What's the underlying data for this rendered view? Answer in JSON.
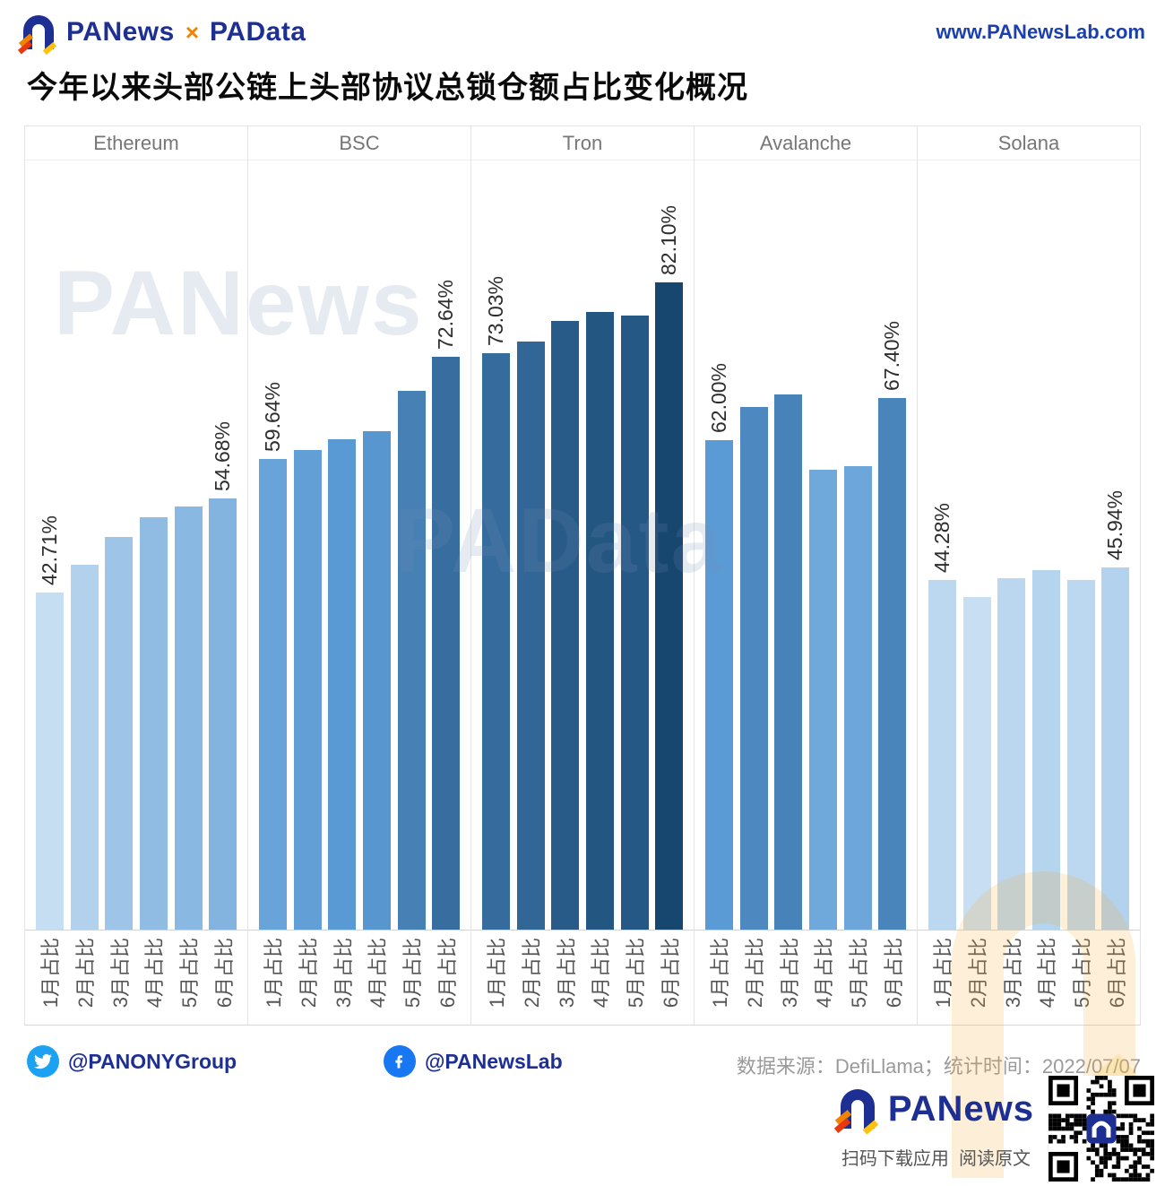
{
  "header": {
    "brand_primary": "PANews",
    "brand_separator": "×",
    "brand_secondary": "PAData",
    "site_url": "www.PANewsLab.com"
  },
  "title": "今年以来头部公链上头部协议总锁仓额占比变化概况",
  "chart_data": {
    "type": "bar",
    "unit": "%",
    "ylim": [
      0,
      100
    ],
    "grid": false,
    "month_labels": [
      "1月占比",
      "2月占比",
      "3月占比",
      "4月占比",
      "5月占比",
      "6月占比"
    ],
    "groups": [
      {
        "name": "Ethereum",
        "values": [
          42.71,
          46.3,
          49.8,
          52.3,
          53.6,
          54.68
        ],
        "value_labels": [
          "42.71%",
          "",
          "",
          "",
          "",
          "54.68%"
        ]
      },
      {
        "name": "BSC",
        "values": [
          59.64,
          60.8,
          62.2,
          63.2,
          68.3,
          72.64
        ],
        "value_labels": [
          "59.64%",
          "",
          "",
          "",
          "",
          "72.64%"
        ]
      },
      {
        "name": "Tron",
        "values": [
          73.03,
          74.5,
          77.2,
          78.3,
          77.8,
          82.1
        ],
        "value_labels": [
          "73.03%",
          "",
          "",
          "",
          "",
          "82.10%"
        ]
      },
      {
        "name": "Avalanche",
        "values": [
          62.0,
          66.2,
          67.8,
          58.3,
          58.7,
          67.4
        ],
        "value_labels": [
          "62.00%",
          "",
          "",
          "",
          "",
          "67.40%"
        ]
      },
      {
        "name": "Solana",
        "values": [
          44.28,
          42.2,
          44.6,
          45.6,
          44.3,
          45.94
        ],
        "value_labels": [
          "44.28%",
          "",
          "",
          "",
          "",
          "45.94%"
        ]
      }
    ],
    "color_scale": {
      "stops": [
        [
          42,
          "#c9e0f3"
        ],
        [
          62,
          "#5b9bd5"
        ],
        [
          82.1,
          "#17466f"
        ]
      ]
    }
  },
  "watermarks": {
    "text_left": "PANews",
    "text_center": "PAData"
  },
  "footer": {
    "twitter_handle": "@PANONYGroup",
    "facebook_handle": "@PANewsLab",
    "source_text": "数据来源：DefiLlama；统计时间：2022/07/07"
  },
  "bottom_brand": {
    "name": "PANews",
    "caption": "扫码下载应用  阅读原文"
  }
}
